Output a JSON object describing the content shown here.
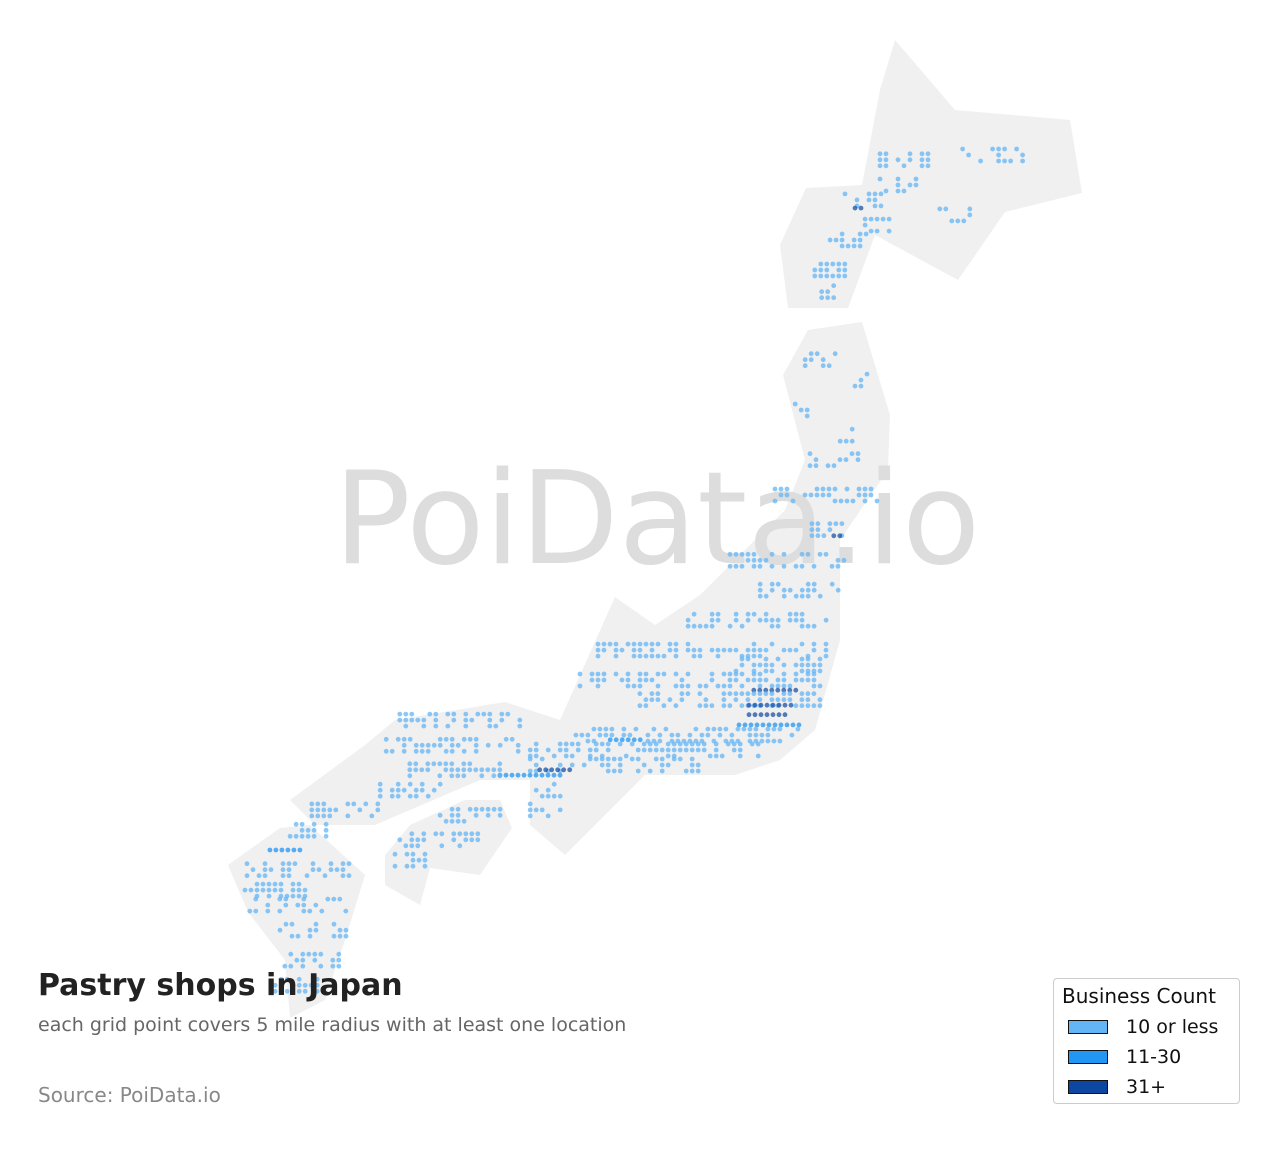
{
  "title": "Pastry shops in Japan",
  "subtitle": "each grid point covers 5 mile radius with at least one location",
  "source": "Source: PoiData.io",
  "watermark": "PoiData.io",
  "colors": {
    "land": "#f0f0f0",
    "watermark": "#dddddd"
  },
  "legend": {
    "title": "Business Count",
    "items": [
      {
        "label": "10 or less",
        "color": "#64b5f6"
      },
      {
        "label": "11-30",
        "color": "#2196f3"
      },
      {
        "label": "31+",
        "color": "#0d47a1"
      }
    ]
  },
  "chart_data": {
    "type": "scatter",
    "description_units": "grid rows: latitude, longitude range (degrees), business-count level 1-3",
    "grid_rows": [
      {
        "lat": 43.75,
        "lon": [
          141.72,
          142.85
        ],
        "level": 1
      },
      {
        "lat": 43.38,
        "lon": [
          141.72,
          142.47
        ],
        "level": 1
      },
      {
        "lat": 43.16,
        "lon": [
          141.06,
          141.82
        ],
        "level": 1
      },
      {
        "lat": 43.04,
        "lon": [
          141.25,
          141.44
        ],
        "level": 3
      },
      {
        "lat": 42.79,
        "lon": [
          141.44,
          141.91
        ],
        "level": 1
      },
      {
        "lat": 42.57,
        "lon": [
          140.78,
          141.53
        ],
        "level": 1
      },
      {
        "lat": 43.82,
        "lon": [
          143.28,
          144.42
        ],
        "level": 1
      },
      {
        "lat": 42.94,
        "lon": [
          142.85,
          143.51
        ],
        "level": 1
      },
      {
        "lat": 42.13,
        "lon": [
          140.49,
          141.06
        ],
        "level": 1
      },
      {
        "lat": 41.81,
        "lon": [
          140.62,
          140.87
        ],
        "level": 1
      },
      {
        "lat": 40.81,
        "lon": [
          140.31,
          140.97
        ],
        "level": 1
      },
      {
        "lat": 40.51,
        "lon": [
          141.25,
          141.53
        ],
        "level": 1
      },
      {
        "lat": 40.07,
        "lon": [
          140.12,
          140.4
        ],
        "level": 1
      },
      {
        "lat": 39.7,
        "lon": [
          140.97,
          141.25
        ],
        "level": 1
      },
      {
        "lat": 39.34,
        "lon": [
          140.4,
          141.34
        ],
        "level": 1
      },
      {
        "lat": 38.82,
        "lon": [
          139.74,
          141.72
        ],
        "level": 1
      },
      {
        "lat": 38.31,
        "lon": [
          140.21,
          141.06
        ],
        "level": 1
      },
      {
        "lat": 38.22,
        "lon": [
          140.85,
          140.97
        ],
        "level": 3
      },
      {
        "lat": 37.86,
        "lon": [
          138.89,
          141.06
        ],
        "level": 1
      },
      {
        "lat": 37.42,
        "lon": [
          139.46,
          140.97
        ],
        "level": 1
      },
      {
        "lat": 36.98,
        "lon": [
          138.1,
          140.74
        ],
        "level": 1
      },
      {
        "lat": 36.54,
        "lon": [
          136.4,
          140.74
        ],
        "level": 1
      },
      {
        "lat": 36.32,
        "lon": [
          138.89,
          140.68
        ],
        "level": 1
      },
      {
        "lat": 36.1,
        "lon": [
          136.06,
          140.68
        ],
        "level": 1
      },
      {
        "lat": 35.95,
        "lon": [
          139.34,
          140.19
        ],
        "level": 3
      },
      {
        "lat": 35.81,
        "lon": [
          137.19,
          140.59
        ],
        "level": 1
      },
      {
        "lat": 35.73,
        "lon": [
          139.25,
          140.12
        ],
        "level": 3
      },
      {
        "lat": 35.59,
        "lon": [
          139.25,
          139.93
        ],
        "level": 3
      },
      {
        "lat": 35.44,
        "lon": [
          139.06,
          140.21
        ],
        "level": 2
      },
      {
        "lat": 35.29,
        "lon": [
          135.87,
          140.21
        ],
        "level": 1
      },
      {
        "lat": 35.22,
        "lon": [
          136.63,
          137.19
        ],
        "level": 2
      },
      {
        "lat": 35.07,
        "lon": [
          135.12,
          139.46
        ],
        "level": 1
      },
      {
        "lat": 34.85,
        "lon": [
          135.12,
          138.32
        ],
        "level": 1
      },
      {
        "lat": 34.78,
        "lon": [
          135.3,
          135.87
        ],
        "level": 3
      },
      {
        "lat": 34.7,
        "lon": [
          134.55,
          135.68
        ],
        "level": 2
      },
      {
        "lat": 34.48,
        "lon": [
          135.12,
          135.87
        ],
        "level": 1
      },
      {
        "lat": 34.19,
        "lon": [
          135.12,
          135.68
        ],
        "level": 1
      },
      {
        "lat": 35.14,
        "lon": [
          132.29,
          134.93
        ],
        "level": 1
      },
      {
        "lat": 35.51,
        "lon": [
          132.66,
          134.93
        ],
        "level": 1
      },
      {
        "lat": 34.78,
        "lon": [
          132.85,
          134.55
        ],
        "level": 1
      },
      {
        "lat": 34.48,
        "lon": [
          132.29,
          133.42
        ],
        "level": 1
      },
      {
        "lat": 34.19,
        "lon": [
          131.0,
          132.29
        ],
        "level": 1
      },
      {
        "lat": 34.11,
        "lon": [
          133.42,
          134.55
        ],
        "level": 1
      },
      {
        "lat": 33.75,
        "lon": [
          132.66,
          134.17
        ],
        "level": 1
      },
      {
        "lat": 33.45,
        "lon": [
          132.57,
          133.23
        ],
        "level": 1
      },
      {
        "lat": 33.89,
        "lon": [
          130.59,
          131.34
        ],
        "level": 1
      },
      {
        "lat": 33.6,
        "lon": [
          130.21,
          130.78
        ],
        "level": 2
      },
      {
        "lat": 33.31,
        "lon": [
          129.55,
          131.91
        ],
        "level": 1
      },
      {
        "lat": 33.01,
        "lon": [
          129.74,
          130.97
        ],
        "level": 1
      },
      {
        "lat": 32.79,
        "lon": [
          129.83,
          131.72
        ],
        "level": 1
      },
      {
        "lat": 32.42,
        "lon": [
          130.4,
          131.72
        ],
        "level": 1
      },
      {
        "lat": 31.98,
        "lon": [
          130.49,
          131.53
        ],
        "level": 1
      },
      {
        "lat": 31.61,
        "lon": [
          130.31,
          131.15
        ],
        "level": 1
      }
    ]
  }
}
